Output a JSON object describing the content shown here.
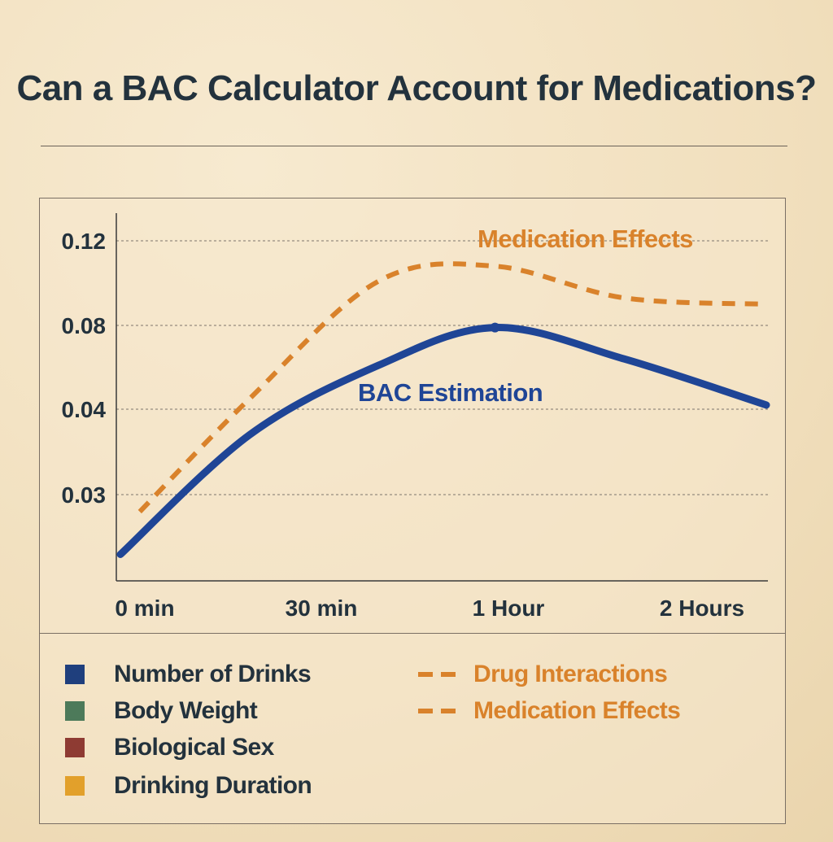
{
  "title": "Can a BAC Calculator Account for Medications?",
  "chart_data": {
    "type": "line",
    "x_ticks": [
      "0 min",
      "30 min",
      "1 Hour",
      "2 Hours"
    ],
    "y_ticks": [
      "0.12",
      "0.08",
      "0.04",
      "0.03"
    ],
    "series": [
      {
        "name": "BAC Estimation",
        "color": "#1f4596",
        "style": "solid",
        "points": [
          [
            0.0,
            0.023
          ],
          [
            0.2,
            0.037
          ],
          [
            0.4,
            0.061
          ],
          [
            0.58,
            0.079
          ],
          [
            0.78,
            0.064
          ],
          [
            1.0,
            0.042
          ]
        ]
      },
      {
        "name": "Medication Effects",
        "color": "#d9822b",
        "style": "dashed",
        "points": [
          [
            0.03,
            0.028
          ],
          [
            0.2,
            0.045
          ],
          [
            0.4,
            0.101
          ],
          [
            0.58,
            0.108
          ],
          [
            0.78,
            0.093
          ],
          [
            1.0,
            0.09
          ]
        ]
      }
    ],
    "grid": true
  },
  "legend": {
    "items": [
      {
        "label": "Number of Drinks",
        "color": "#1f3f7d"
      },
      {
        "label": "Body Weight",
        "color": "#4d7a5a"
      },
      {
        "label": "Biological Sex",
        "color": "#8e3b33"
      },
      {
        "label": "Drinking Duration",
        "color": "#e2a02b"
      }
    ],
    "dashed": [
      {
        "label": "Drug Interactions",
        "color": "#d9822b"
      },
      {
        "label": "Medication Effects",
        "color": "#d9822b"
      }
    ]
  }
}
